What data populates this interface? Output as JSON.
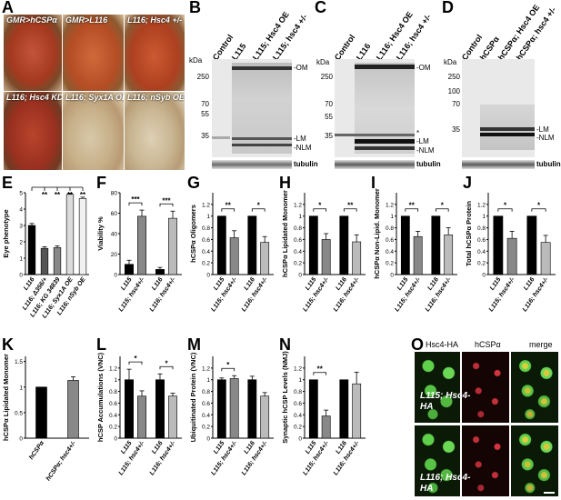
{
  "panels": {
    "A": "A",
    "B": "B",
    "C": "C",
    "D": "D",
    "E": "E",
    "F": "F",
    "G": "G",
    "H": "H",
    "I": "I",
    "J": "J",
    "K": "K",
    "L": "L",
    "M": "M",
    "N": "N",
    "O": "O"
  },
  "panelA": {
    "captions": [
      "GMR>hCSPα",
      "GMR>L116",
      "L116; Hsc4 +/-",
      "L116; Hsc4 KD",
      "L116; Syx1A OE",
      "L116; nSyb OE"
    ]
  },
  "blots": {
    "B": {
      "lanes": [
        "Control",
        "L115",
        "L115; Hsc4 OE",
        "L115; hsc4 +/-"
      ],
      "markers": [
        "250",
        "70",
        "55",
        "35"
      ],
      "right_labels": [
        "-OM",
        "-LM",
        "-NLM"
      ],
      "loading": "tubulin",
      "kda": "kDa"
    },
    "C": {
      "lanes": [
        "Control",
        "L116",
        "L116; Hsc4 OE",
        "L116; hsc4 +/-"
      ],
      "markers": [
        "250",
        "70",
        "55",
        "35"
      ],
      "right_labels": [
        "-OM",
        "*",
        "-LM",
        "-NLM"
      ],
      "loading": "tubulin",
      "kda": "kDa"
    },
    "D": {
      "lanes": [
        "Control",
        "hCSPα",
        "hCSPα; Hsc4 OE",
        "hCSPα; hsc4 +/-"
      ],
      "markers": [
        "250",
        "100",
        "70",
        "35"
      ],
      "right_labels": [
        "-LM",
        "-NLM"
      ],
      "loading": "tubulin",
      "kda": "kDa"
    }
  },
  "panelO": {
    "columns": [
      "Hsc4-HA",
      "hCSPα",
      "merge"
    ],
    "rows": [
      "L115; Hsc4-HA",
      "L116; Hsc4-HA"
    ]
  },
  "chart_data": [
    {
      "panel": "E",
      "type": "bar",
      "ylabel": "Eye phenotype",
      "ylim": [
        0,
        5
      ],
      "yticks": [
        0,
        1,
        2,
        3,
        4,
        5
      ],
      "categories": [
        "L116",
        "L116; Δ356/+",
        "L116; KG 34839",
        "L116; Syx1A OE",
        "L116; nSyb OE"
      ],
      "values": [
        3.0,
        1.6,
        1.65,
        4.9,
        4.65
      ],
      "errors": [
        0.12,
        0.1,
        0.1,
        0.07,
        0.08
      ],
      "colors": [
        "#000000",
        "#555555",
        "#888888",
        "#dcdcdc",
        "#f2f2f2"
      ],
      "significance": [
        "**",
        "**",
        "**",
        "**"
      ]
    },
    {
      "panel": "F",
      "type": "bar",
      "ylabel": "Viability %",
      "ylim": [
        0,
        80
      ],
      "yticks": [
        0,
        20,
        40,
        60,
        80
      ],
      "categories": [
        "L115",
        "L115; hsc4+/-",
        "L116",
        "L116; hsc4+/-"
      ],
      "values": [
        10,
        57,
        5,
        55
      ],
      "errors": [
        4,
        6,
        2,
        7
      ],
      "colors": [
        "#000000",
        "#888888",
        "#000000",
        "#bbbbbb"
      ],
      "significance": [
        "***",
        "***"
      ]
    },
    {
      "panel": "G",
      "type": "bar",
      "ylabel": "hCSPα Oligomers",
      "ylim": [
        0,
        1.4
      ],
      "yticks": [
        0,
        0.2,
        0.4,
        0.6,
        0.8,
        1.0,
        1.2
      ],
      "categories": [
        "L115",
        "L115; hsc4+/-",
        "L116",
        "L116; hsc4+/-"
      ],
      "values": [
        1.0,
        0.63,
        1.0,
        0.55
      ],
      "errors": [
        0,
        0.12,
        0,
        0.1
      ],
      "colors": [
        "#000000",
        "#888888",
        "#000000",
        "#bbbbbb"
      ],
      "significance": [
        "**",
        "*"
      ]
    },
    {
      "panel": "H",
      "type": "bar",
      "ylabel": "hCSPα Lipidated Monomer",
      "ylim": [
        0,
        1.4
      ],
      "yticks": [
        0,
        0.2,
        0.4,
        0.6,
        0.8,
        1.0,
        1.2
      ],
      "categories": [
        "L115",
        "L115; hsc4+/-",
        "L116",
        "L116; hsc4+/-"
      ],
      "values": [
        1.0,
        0.6,
        1.0,
        0.56
      ],
      "errors": [
        0,
        0.1,
        0,
        0.12
      ],
      "colors": [
        "#000000",
        "#888888",
        "#000000",
        "#bbbbbb"
      ],
      "significance": [
        "*",
        "**"
      ]
    },
    {
      "panel": "I",
      "type": "bar",
      "ylabel": "hCSPα Non-Lipid. Monomer",
      "ylim": [
        0,
        1.4
      ],
      "yticks": [
        0,
        0.2,
        0.4,
        0.6,
        0.8,
        1.0,
        1.2
      ],
      "categories": [
        "L115",
        "L115; hsc4+/-",
        "L116",
        "L116; hsc4+/-"
      ],
      "values": [
        1.0,
        0.65,
        1.0,
        0.68
      ],
      "errors": [
        0,
        0.09,
        0,
        0.12
      ],
      "colors": [
        "#000000",
        "#888888",
        "#000000",
        "#bbbbbb"
      ],
      "significance": [
        "**",
        "*"
      ]
    },
    {
      "panel": "J",
      "type": "bar",
      "ylabel": "Total hCSPα Protein",
      "ylim": [
        0,
        1.4
      ],
      "yticks": [
        0,
        0.2,
        0.4,
        0.6,
        0.8,
        1.0,
        1.2
      ],
      "categories": [
        "L115",
        "L115; hsc4+/-",
        "L116",
        "L116; hsc4+/-"
      ],
      "values": [
        1.0,
        0.62,
        1.0,
        0.55
      ],
      "errors": [
        0,
        0.12,
        0,
        0.12
      ],
      "colors": [
        "#000000",
        "#888888",
        "#000000",
        "#bbbbbb"
      ],
      "significance": [
        "*",
        "*"
      ]
    },
    {
      "panel": "K",
      "type": "bar",
      "ylabel": "hCSPα Lipidated Monomer",
      "ylim": [
        0,
        1.6
      ],
      "yticks": [
        0,
        0.5,
        1,
        1.5
      ],
      "categories": [
        "hCSPα",
        "hCSPα; hsc4+/-"
      ],
      "values": [
        1.0,
        1.13
      ],
      "errors": [
        0,
        0.07
      ],
      "colors": [
        "#000000",
        "#888888"
      ],
      "significance": []
    },
    {
      "panel": "L",
      "type": "bar",
      "ylabel": "hCSP Accumulations (VNC)",
      "ylim": [
        0,
        1.4
      ],
      "yticks": [
        0,
        0.2,
        0.4,
        0.6,
        0.8,
        1.0,
        1.2
      ],
      "categories": [
        "L115",
        "L115; hsc4+/-",
        "L116",
        "L116; hsc4+/-"
      ],
      "values": [
        1.0,
        0.72,
        1.0,
        0.72
      ],
      "errors": [
        0.18,
        0.09,
        0.1,
        0.05
      ],
      "colors": [
        "#000000",
        "#888888",
        "#000000",
        "#bbbbbb"
      ],
      "significance": [
        "*",
        "*"
      ]
    },
    {
      "panel": "M",
      "type": "bar",
      "ylabel": "Ubiquitinated Protein (VNC)",
      "ylim": [
        0,
        1.4
      ],
      "yticks": [
        0,
        0.2,
        0.4,
        0.6,
        0.8,
        1.0,
        1.2
      ],
      "categories": [
        "L115",
        "L115; hsc4+/-",
        "L116",
        "L116; hsc4+/-"
      ],
      "values": [
        1.0,
        1.02,
        1.0,
        0.72
      ],
      "errors": [
        0.03,
        0.05,
        0.06,
        0.06
      ],
      "colors": [
        "#000000",
        "#888888",
        "#000000",
        "#bbbbbb"
      ],
      "significance": [
        "*"
      ]
    },
    {
      "panel": "N",
      "type": "bar",
      "ylabel": "Synaptic hCSP Levels (NMJ)",
      "ylim": [
        0,
        1.4
      ],
      "yticks": [
        0,
        0.2,
        0.4,
        0.6,
        0.8,
        1.0,
        1.2
      ],
      "categories": [
        "L115",
        "L115; hsc4+/-",
        "L116",
        "L116; hsc4+/-"
      ],
      "values": [
        1.0,
        0.38,
        1.0,
        0.93
      ],
      "errors": [
        0,
        0.1,
        0,
        0.2
      ],
      "colors": [
        "#000000",
        "#888888",
        "#000000",
        "#bbbbbb"
      ],
      "significance": [
        "**"
      ]
    }
  ]
}
